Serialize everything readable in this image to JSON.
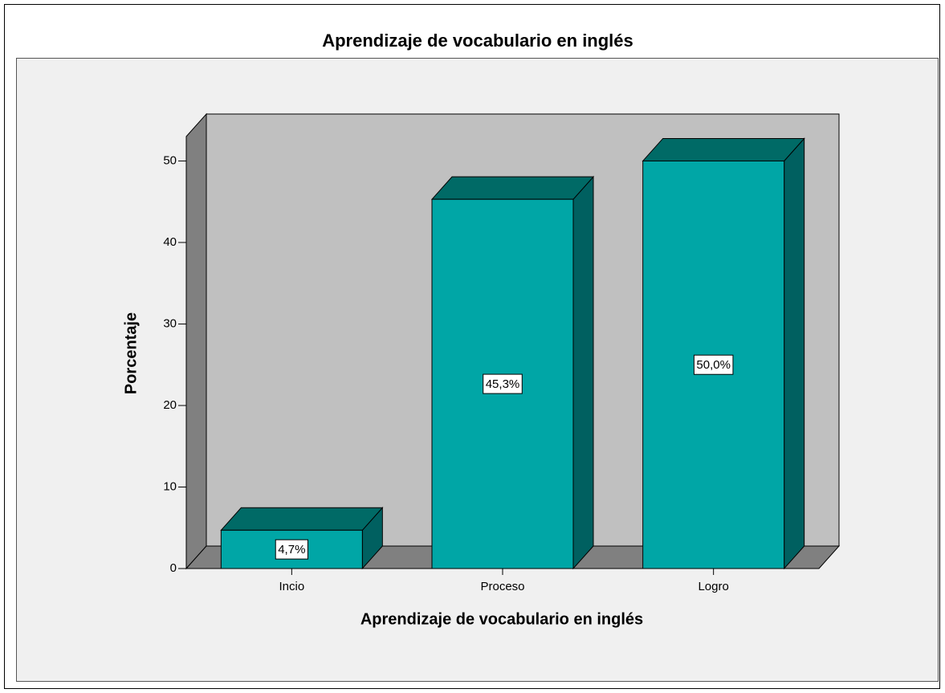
{
  "chart_data": {
    "type": "bar3d",
    "title": "Aprendizaje de vocabulario en inglés",
    "x_label": "Aprendizaje de vocabulario en inglés",
    "y_label": "Porcentaje",
    "categories": [
      "Incio",
      "Proceso",
      "Logro"
    ],
    "values": [
      4.7,
      45.3,
      50.0
    ],
    "value_labels": [
      "4,7%",
      "45,3%",
      "50,0%"
    ],
    "color": "#00a6a6",
    "ylim": [
      0,
      53
    ],
    "yticks": [
      0,
      10,
      20,
      30,
      40,
      50
    ]
  }
}
